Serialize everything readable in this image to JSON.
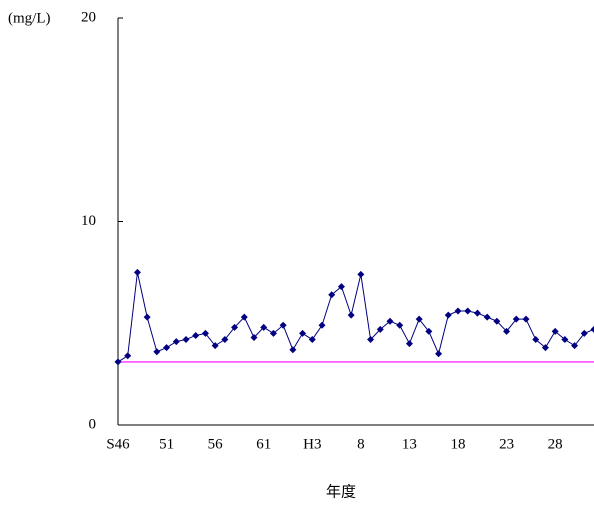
{
  "chart_data": {
    "type": "line",
    "y_label": "(mg/L)",
    "x_label": "年度",
    "categories": [
      "S46",
      null,
      null,
      null,
      null,
      "51",
      null,
      null,
      null,
      null,
      "56",
      null,
      null,
      null,
      null,
      "61",
      null,
      null,
      null,
      null,
      "H3",
      null,
      null,
      null,
      null,
      "8",
      null,
      null,
      null,
      null,
      "13",
      null,
      null,
      null,
      null,
      "18",
      null,
      null,
      null,
      null,
      "23",
      null,
      null,
      null,
      null,
      "28",
      null,
      null,
      null,
      null
    ],
    "series": [
      {
        "color": "#000080",
        "values": [
          3.1,
          3.4,
          7.5,
          5.3,
          3.6,
          3.8,
          4.1,
          4.2,
          4.4,
          4.5,
          3.9,
          4.2,
          4.8,
          5.3,
          4.3,
          4.8,
          4.5,
          4.9,
          3.7,
          4.5,
          4.2,
          4.9,
          6.4,
          6.8,
          5.4,
          7.4,
          4.2,
          4.7,
          5.1,
          4.9,
          4.0,
          5.2,
          4.6,
          3.5,
          5.4,
          5.6,
          5.6,
          5.5,
          5.3,
          5.1,
          4.6,
          5.2,
          5.2,
          4.2,
          3.8,
          4.6,
          4.2,
          3.9,
          4.5,
          4.7
        ]
      }
    ],
    "hline": 3.1,
    "hline_color": "#ff00ff",
    "ylim": [
      0,
      20
    ],
    "yticks": [
      0,
      10,
      20
    ]
  }
}
